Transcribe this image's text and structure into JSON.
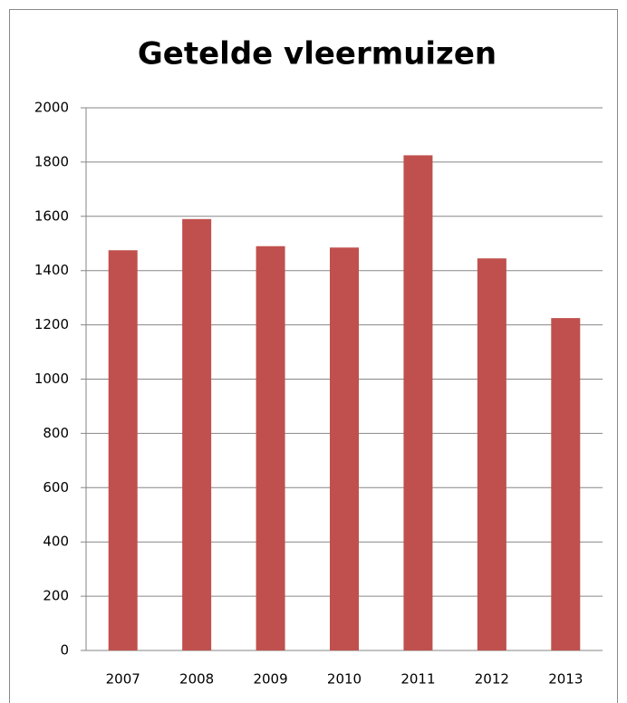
{
  "chart_data": {
    "type": "bar",
    "title": "Getelde vleermuizen",
    "categories": [
      "2007",
      "2008",
      "2009",
      "2010",
      "2011",
      "2012",
      "2013"
    ],
    "values": [
      1475,
      1590,
      1490,
      1485,
      1825,
      1445,
      1225
    ],
    "color": "#c0504d",
    "ylim": [
      0,
      2000
    ],
    "yticks": [
      0,
      200,
      400,
      600,
      800,
      1000,
      1200,
      1400,
      1600,
      1800,
      2000
    ],
    "grid": true
  }
}
